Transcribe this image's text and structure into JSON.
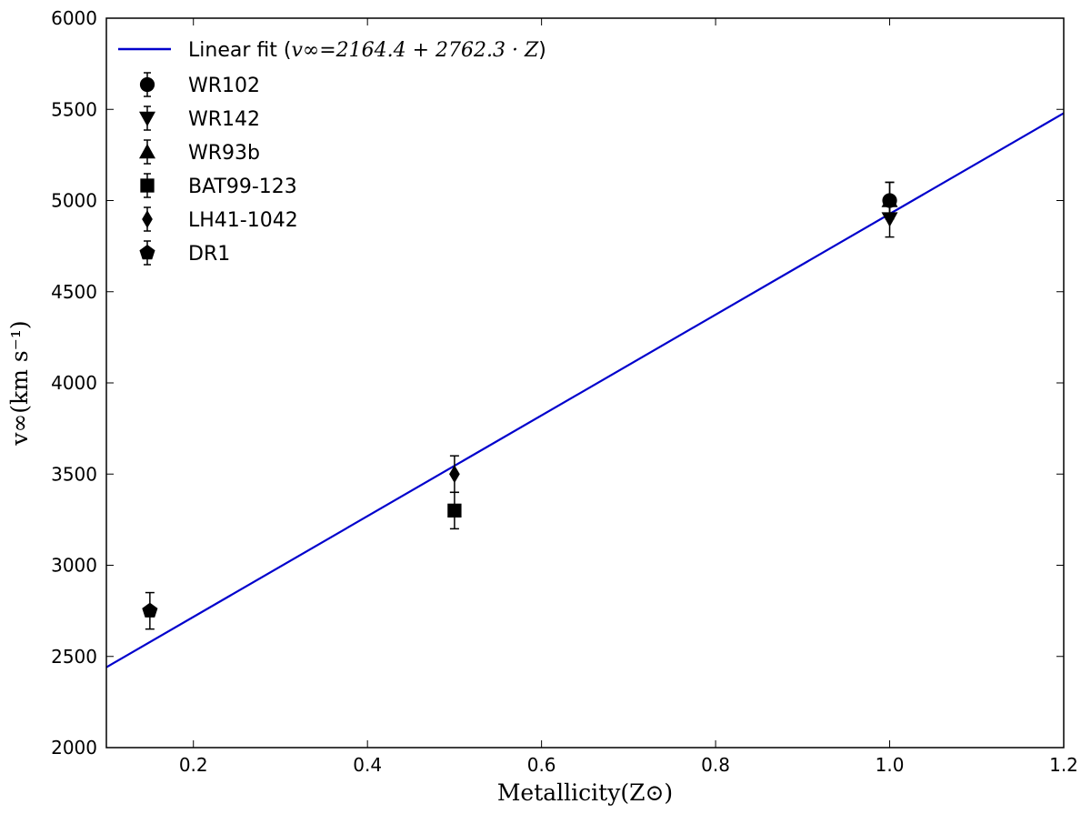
{
  "chart_data": {
    "type": "scatter",
    "xlabel": "Metallicity(Z⊙)",
    "ylabel": "v∞(km s⁻¹)",
    "xlim": [
      0.1,
      1.2
    ],
    "ylim": [
      2000,
      6000
    ],
    "xticks": [
      "0.2",
      "0.4",
      "0.6",
      "0.8",
      "1.0",
      "1.2"
    ],
    "yticks": [
      "2000",
      "2500",
      "3000",
      "3500",
      "4000",
      "4500",
      "5000",
      "5500",
      "6000"
    ],
    "grid": false,
    "legend_position": "top-left",
    "fit": {
      "label_prefix": "Linear fit (",
      "label_math": "v∞=2164.4 + 2762.3 · Z",
      "label_suffix": ")",
      "intercept": 2164.4,
      "slope": 2762.3,
      "color": "#0000cc"
    },
    "series": [
      {
        "name": "WR102",
        "marker": "circle",
        "x": 1.0,
        "y": 5000,
        "err": 100
      },
      {
        "name": "WR142",
        "marker": "triangle-down",
        "x": 1.0,
        "y": 4900,
        "err": 100
      },
      {
        "name": "WR93b",
        "marker": "triangle-up",
        "x": 1.0,
        "y": 5000,
        "err": 100
      },
      {
        "name": "BAT99-123",
        "marker": "square",
        "x": 0.5,
        "y": 3300,
        "err": 100
      },
      {
        "name": "LH41-1042",
        "marker": "diamond",
        "x": 0.5,
        "y": 3500,
        "err": 100
      },
      {
        "name": "DR1",
        "marker": "pentagon",
        "x": 0.15,
        "y": 2750,
        "err": 100
      }
    ]
  }
}
